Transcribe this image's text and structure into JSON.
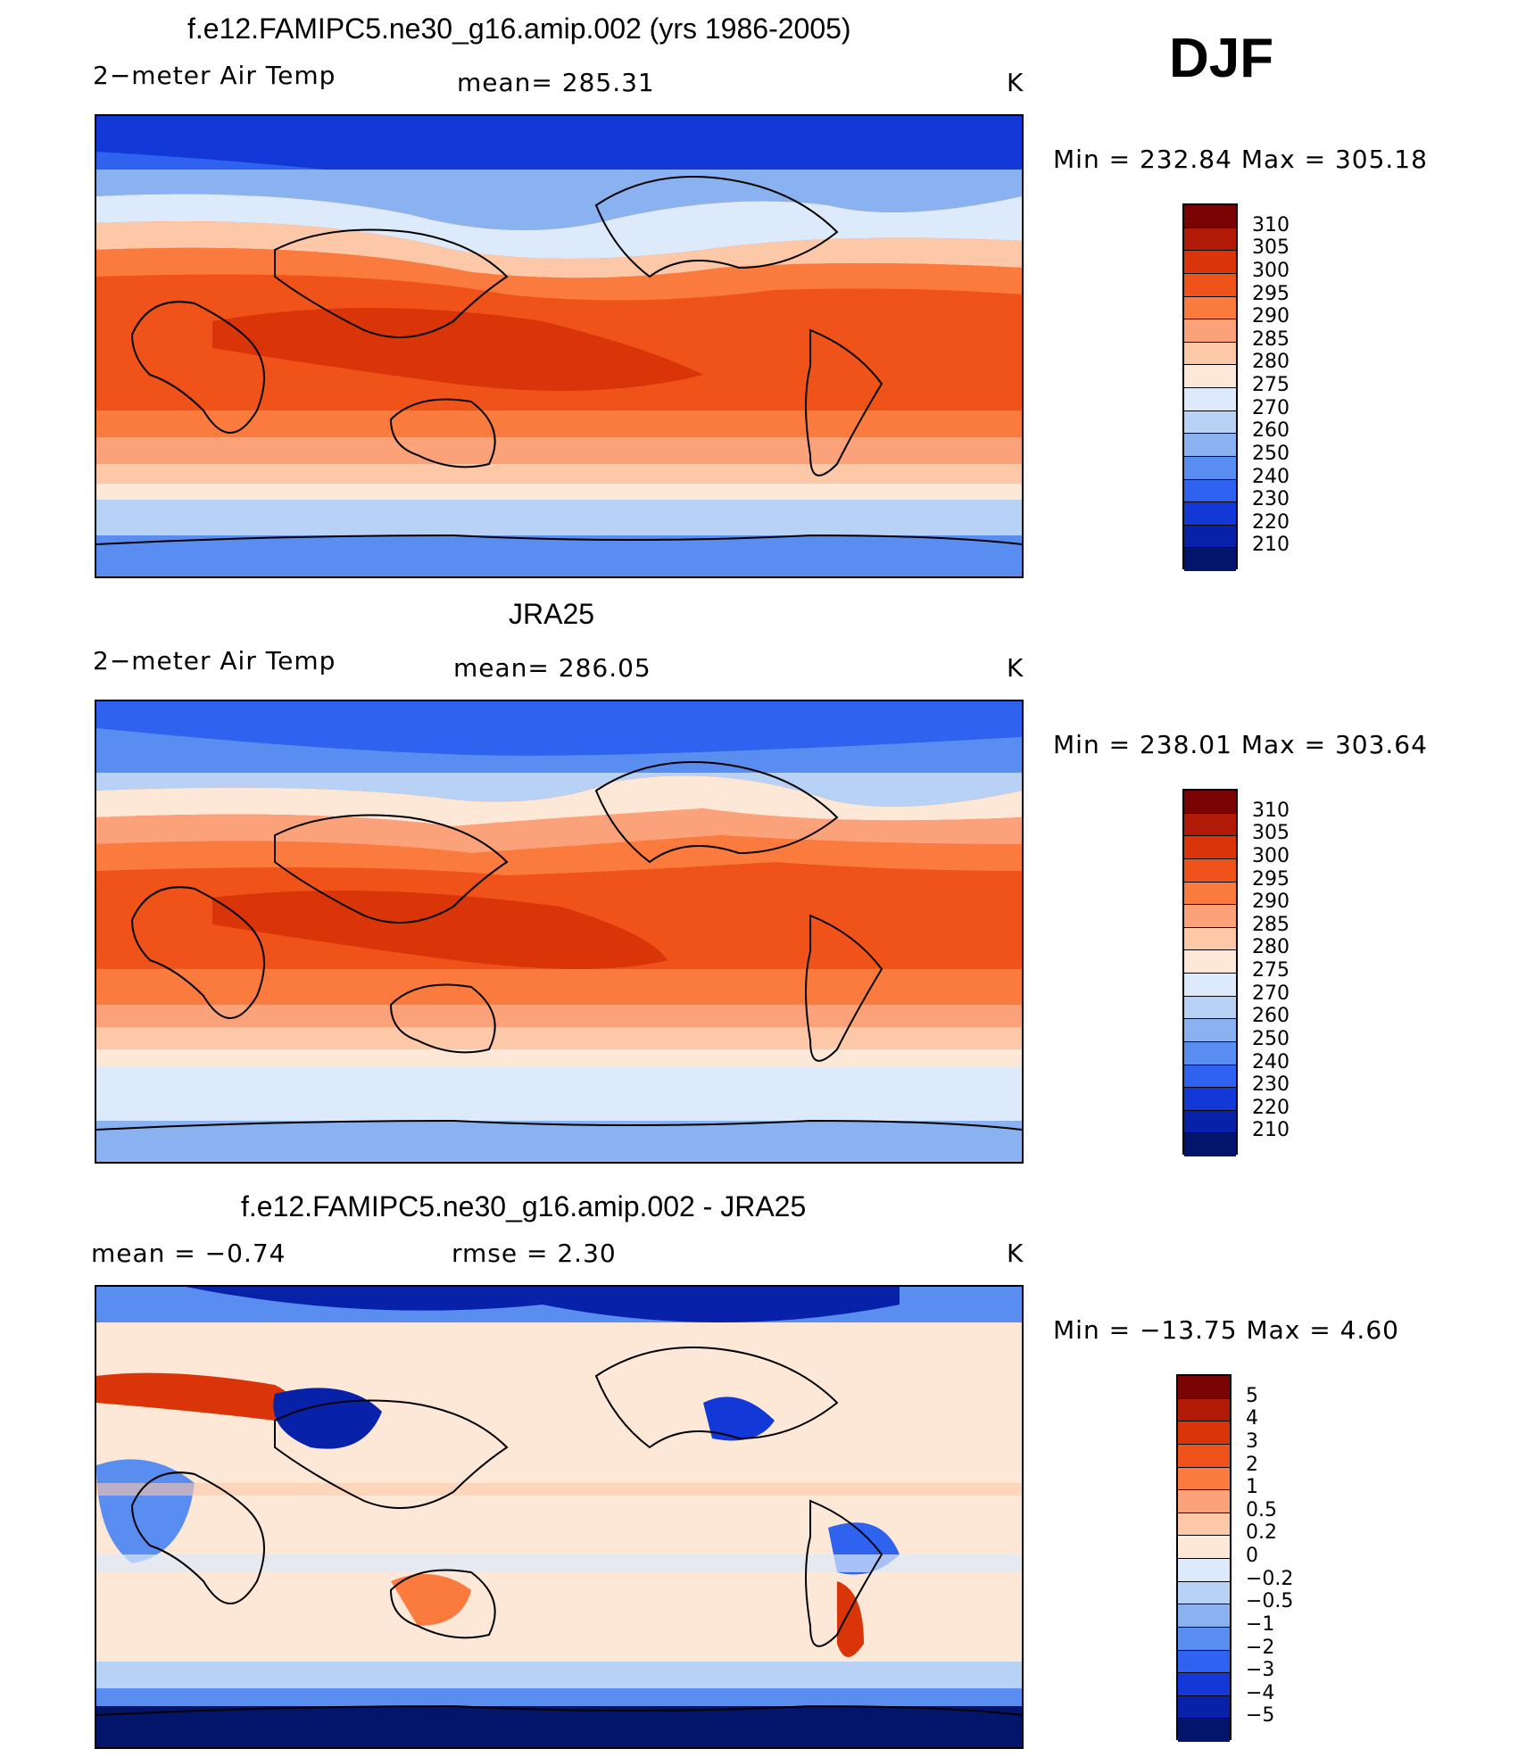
{
  "season": "DJF",
  "panels": [
    {
      "title": "f.e12.FAMIPC5.ne30_g16.amip.002 (yrs 1986-2005)",
      "left_label": "2−meter Air Temp",
      "center_label": "mean=  285.31",
      "units": "K",
      "minmax": "Min  =  232.84  Max  =  305.18",
      "levels": [
        "310",
        "305",
        "300",
        "295",
        "290",
        "285",
        "280",
        "275",
        "270",
        "260",
        "250",
        "240",
        "230",
        "220",
        "210"
      ]
    },
    {
      "title": "JRA25",
      "left_label": "2−meter Air Temp",
      "center_label": "mean=  286.05",
      "units": "K",
      "minmax": "Min  =  238.01  Max  =  303.64",
      "levels": [
        "310",
        "305",
        "300",
        "295",
        "290",
        "285",
        "280",
        "275",
        "270",
        "260",
        "250",
        "240",
        "230",
        "220",
        "210"
      ]
    },
    {
      "title": "f.e12.FAMIPC5.ne30_g16.amip.002 - JRA25",
      "left_label": "mean  =    −0.74",
      "center_label": "rmse  =     2.30",
      "units": "K",
      "minmax": "Min  =  −13.75  Max  =      4.60",
      "levels": [
        "5",
        "4",
        "3",
        "2",
        "1",
        "0.5",
        "0.2",
        "0",
        "−0.2",
        "−0.5",
        "−1",
        "−2",
        "−3",
        "−4",
        "−5"
      ]
    }
  ],
  "colors": {
    "abs_scale": [
      "#7a0403",
      "#b01a06",
      "#d93508",
      "#f0531a",
      "#fb7b3e",
      "#fca27a",
      "#fcc8a8",
      "#fde8d8",
      "#dceafb",
      "#b8d2f6",
      "#8ab2f0",
      "#5a8df0",
      "#2f62ee",
      "#1238d8",
      "#0722a8",
      "#02156b"
    ],
    "diff_scale": [
      "#7a0403",
      "#b01a06",
      "#d93508",
      "#f0531a",
      "#fb7b3e",
      "#fca27a",
      "#fcc8a8",
      "#fde8d8",
      "#dceafb",
      "#b8d2f6",
      "#8ab2f0",
      "#5a8df0",
      "#2f62ee",
      "#1238d8",
      "#0722a8",
      "#02156b"
    ]
  }
}
